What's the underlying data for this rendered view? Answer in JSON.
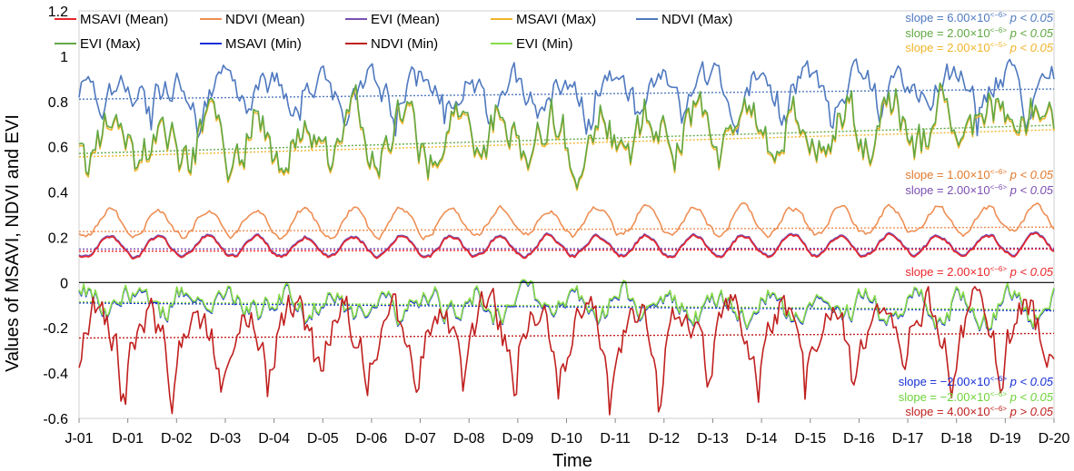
{
  "chart_data": {
    "type": "line",
    "title": "",
    "xlabel": "Time",
    "ylabel": "Values of MSAVI, NDVI and EVI",
    "ylim": [
      -0.6,
      1.2
    ],
    "yticks": [
      "1.2",
      "1",
      "0.8",
      "0.6",
      "0.4",
      "0.2",
      "0",
      "-0.2",
      "-0.4",
      "-0.6"
    ],
    "ytick_values": [
      1.2,
      1.0,
      0.8,
      0.6,
      0.4,
      0.2,
      0.0,
      -0.2,
      -0.4,
      -0.6
    ],
    "xticks": [
      "J-01",
      "D-01",
      "D-02",
      "D-03",
      "D-04",
      "D-05",
      "D-06",
      "D-07",
      "D-08",
      "D-09",
      "D-10",
      "D-11",
      "D-12",
      "D-13",
      "D-14",
      "D-15",
      "D-16",
      "D-17",
      "D-18",
      "D-19",
      "D-20"
    ],
    "x_range": [
      0,
      20
    ],
    "legend": [
      {
        "name": "MSAVI (Mean)",
        "color": "#e8262a"
      },
      {
        "name": "NDVI (Mean)",
        "color": "#ee8f55"
      },
      {
        "name": "EVI (Mean)",
        "color": "#7b4fb3"
      },
      {
        "name": "MSAVI (Max)",
        "color": "#f0b52c"
      },
      {
        "name": "NDVI (Max)",
        "color": "#4f79bf"
      },
      {
        "name": "EVI (Max)",
        "color": "#62a844"
      },
      {
        "name": "MSAVI (Min)",
        "color": "#1730d6"
      },
      {
        "name": "NDVI (Min)",
        "color": "#c0201f"
      },
      {
        "name": "EVI (Min)",
        "color": "#88dc48"
      }
    ],
    "series": [
      {
        "name": "NDVI (Max)",
        "color": "#4f79bf",
        "base": 0.835,
        "amp": 0.04,
        "trend": 0.0022,
        "noise": 0.055,
        "seed": 11,
        "phase": 0.3,
        "dip": -0.1
      },
      {
        "name": "MSAVI (Max)",
        "color": "#f0b52c",
        "base": 0.6,
        "amp": 0.1,
        "trend": 0.0045,
        "noise": 0.085,
        "seed": 21,
        "phase": 0.55,
        "dip": 0
      },
      {
        "name": "EVI (Max)",
        "color": "#62a844",
        "base": 0.61,
        "amp": 0.1,
        "trend": 0.0045,
        "noise": 0.085,
        "seed": 21,
        "phase": 0.55,
        "dip": 0
      },
      {
        "name": "NDVI (Mean)",
        "color": "#ee8f55",
        "base": 0.26,
        "amp": 0.06,
        "trend": 0.0008,
        "noise": 0.012,
        "seed": 31,
        "phase": 0.62,
        "dip": 0
      },
      {
        "name": "EVI (Mean)",
        "color": "#7b4fb3",
        "base": 0.16,
        "amp": 0.045,
        "trend": 0.0005,
        "noise": 0.008,
        "seed": 41,
        "phase": 0.62,
        "dip": 0
      },
      {
        "name": "MSAVI (Min)",
        "color": "#1730d6",
        "base": -0.09,
        "amp": 0.05,
        "trend": -0.0012,
        "noise": 0.045,
        "seed": 51,
        "phase": 0.1,
        "dip": 0
      },
      {
        "name": "MSAVI (Mean)",
        "color": "#e8262a",
        "base": 0.155,
        "amp": 0.045,
        "trend": 0.0005,
        "noise": 0.008,
        "seed": 41,
        "phase": 0.62,
        "dip": 0
      },
      {
        "name": "EVI (Min)",
        "color": "#88dc48",
        "base": -0.085,
        "amp": 0.05,
        "trend": -0.0012,
        "noise": 0.045,
        "seed": 51,
        "phase": 0.1,
        "dip": 0
      },
      {
        "name": "NDVI (Min)",
        "color": "#c0201f",
        "base": -0.22,
        "amp": 0.1,
        "trend": 0.0008,
        "noise": 0.07,
        "seed": 61,
        "phase": 0.85,
        "dip": -0.15
      }
    ],
    "trendlines": [
      {
        "name": "NDVI (Max)",
        "color": "#4f79bf",
        "start": 0.81,
        "end": 0.855
      },
      {
        "name": "EVI (Max)",
        "color": "#62a844",
        "start": 0.57,
        "end": 0.695
      },
      {
        "name": "MSAVI (Max)",
        "color": "#f0b52c",
        "start": 0.555,
        "end": 0.675
      },
      {
        "name": "NDVI (Mean)",
        "color": "#ee8f55",
        "start": 0.225,
        "end": 0.245
      },
      {
        "name": "EVI (Mean)",
        "color": "#7b4fb3",
        "start": 0.148,
        "end": 0.152
      },
      {
        "name": "MSAVI (Mean)",
        "color": "#e8262a",
        "start": 0.138,
        "end": 0.148
      },
      {
        "name": "MSAVI (Min)",
        "color": "#1730d6",
        "start": -0.09,
        "end": -0.125
      },
      {
        "name": "EVI (Min)",
        "color": "#88dc48",
        "start": -0.085,
        "end": -0.12
      },
      {
        "name": "NDVI (Min)",
        "color": "#c0201f",
        "start": -0.245,
        "end": -0.225
      }
    ],
    "slope_annotations": [
      {
        "prefix": "slope = 6.00×10",
        "exp": "<−6>",
        "p": " p < 0.05",
        "color": "#4f79bf"
      },
      {
        "prefix": "slope = 2.00×10",
        "exp": "<−6>",
        "p": " p < 0.05",
        "color": "#62a844"
      },
      {
        "prefix": "slope = 2.00×10",
        "exp": "<−5>",
        "p": " p < 0.05",
        "color": "#f0b52c"
      },
      {
        "prefix": "slope = 1.00×10",
        "exp": "<−6>",
        "p": " p < 0.05",
        "color": "#e07a2e"
      },
      {
        "prefix": "slope = 2.00×10",
        "exp": "<−6>",
        "p": " p < 0.05",
        "color": "#7b4fb3"
      },
      {
        "prefix": "slope = 2.00×10",
        "exp": "<−6>",
        "p": " p < 0.05",
        "color": "#e8262a"
      },
      {
        "prefix": "slope = −2.00×10",
        "exp": "<−6>",
        "p": " p < 0.05",
        "color": "#1730d6"
      },
      {
        "prefix": "slope = −2.00×10",
        "exp": "<−6>",
        "p": " p < 0.05",
        "color": "#6fd43a"
      },
      {
        "prefix": "slope = 4.00×10",
        "exp": "<−6>",
        "p": " p > 0.05",
        "color": "#c0201f"
      }
    ]
  }
}
